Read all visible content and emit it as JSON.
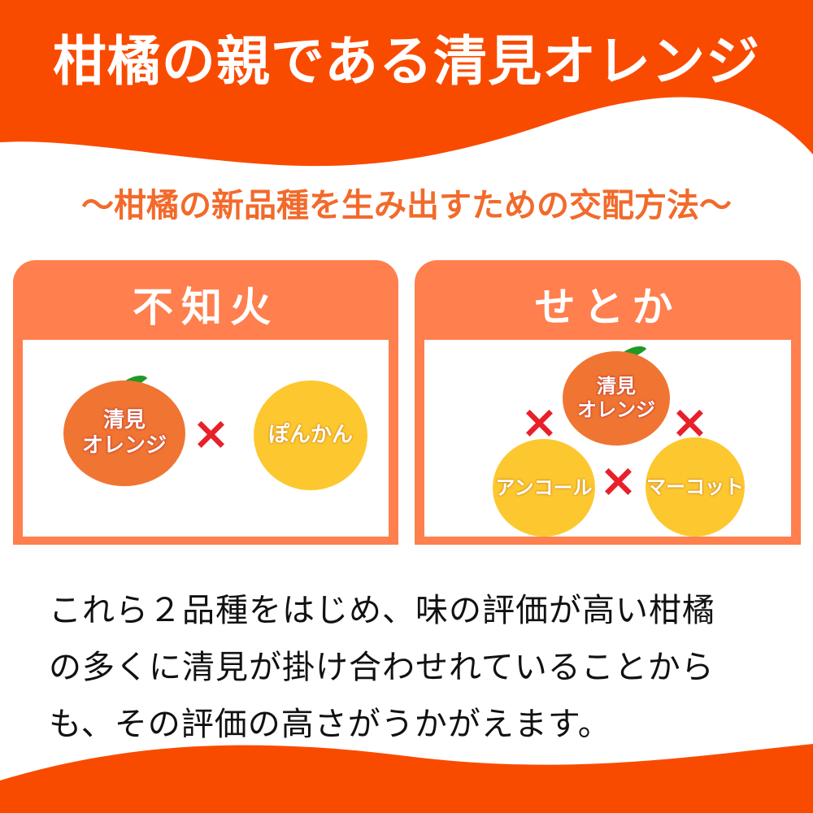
{
  "header": {
    "title": "柑橘の親である清見オレンジ"
  },
  "subtitle": "～柑橘の新品種を生み出すための交配方法～",
  "colors": {
    "banner": "#F94B00",
    "panel": "#FF7F4E",
    "kiyomi": "#F07532",
    "yellow_fruit": "#FDC82F",
    "cross": "#E8202A",
    "leaf": "#1E9A24"
  },
  "panels": [
    {
      "title": "不知火",
      "fruits": [
        "清見\nオレンジ",
        "ぽんかん"
      ],
      "cross_icon": "×"
    },
    {
      "title": "せとか",
      "fruits": [
        "清見\nオレンジ",
        "アンコール",
        "マーコット"
      ],
      "cross_icon": "×"
    }
  ],
  "body": {
    "lines": [
      "これら２品種をはじめ、味の評価が高い柑橘",
      "の多くに清見が掛け合わせれていることから",
      "も、その評価の高さがうかがえます。"
    ]
  }
}
